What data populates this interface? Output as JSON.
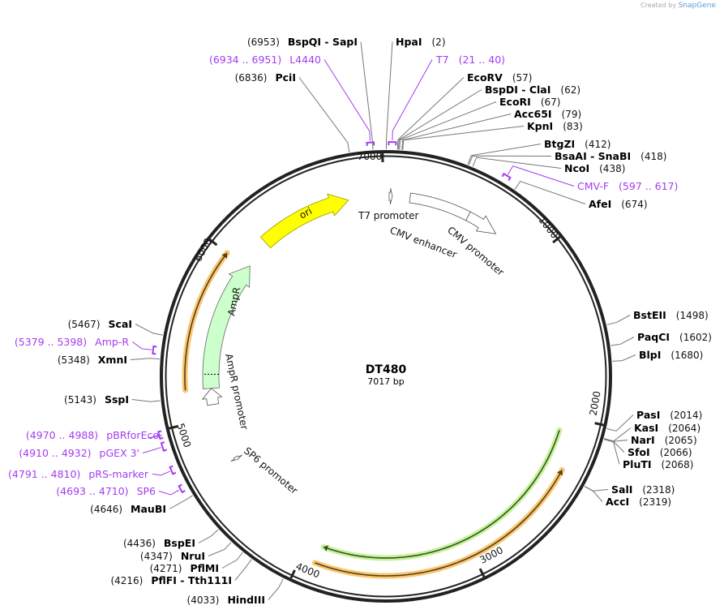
{
  "credit": {
    "prefix": "Created by",
    "brand": "SnapGene"
  },
  "plasmid": {
    "name": "DT480",
    "length_label": "7017 bp",
    "length_bp": 7017
  },
  "ticks": [
    "1000",
    "2000",
    "3000",
    "4000",
    "5000",
    "6000",
    "7000"
  ],
  "enzymes": [
    {
      "name": "HpaI",
      "pos": "(2)",
      "bp": 2
    },
    {
      "name": "EcoRV",
      "pos": "(57)",
      "bp": 57
    },
    {
      "name": "BspDI  -  ClaI",
      "pos": "(62)",
      "bp": 62
    },
    {
      "name": "EcoRI",
      "pos": "(67)",
      "bp": 67
    },
    {
      "name": "Acc65I",
      "pos": "(79)",
      "bp": 79
    },
    {
      "name": "KpnI",
      "pos": "(83)",
      "bp": 83
    },
    {
      "name": "BtgZI",
      "pos": "(412)",
      "bp": 412
    },
    {
      "name": "BsaAI  -  SnaBI",
      "pos": "(418)",
      "bp": 418
    },
    {
      "name": "NcoI",
      "pos": "(438)",
      "bp": 438
    },
    {
      "name": "AfeI",
      "pos": "(674)",
      "bp": 674
    },
    {
      "name": "BstEII",
      "pos": "(1498)",
      "bp": 1498
    },
    {
      "name": "PaqCI",
      "pos": "(1602)",
      "bp": 1602
    },
    {
      "name": "BlpI",
      "pos": "(1680)",
      "bp": 1680
    },
    {
      "name": "PasI",
      "pos": "(2014)",
      "bp": 2014
    },
    {
      "name": "KasI",
      "pos": "(2064)",
      "bp": 2064
    },
    {
      "name": "NarI",
      "pos": "(2065)",
      "bp": 2065
    },
    {
      "name": "SfoI",
      "pos": "(2066)",
      "bp": 2066
    },
    {
      "name": "PluTI",
      "pos": "(2068)",
      "bp": 2068
    },
    {
      "name": "SalI",
      "pos": "(2318)",
      "bp": 2318
    },
    {
      "name": "AccI",
      "pos": "(2319)",
      "bp": 2319
    },
    {
      "name": "HindIII",
      "pos": "(4033)",
      "bp": 4033
    },
    {
      "name": "PflFI  -  Tth111I",
      "pos": "(4216)",
      "bp": 4216
    },
    {
      "name": "PflMI",
      "pos": "(4271)",
      "bp": 4271
    },
    {
      "name": "NruI",
      "pos": "(4347)",
      "bp": 4347
    },
    {
      "name": "BspEI",
      "pos": "(4436)",
      "bp": 4436
    },
    {
      "name": "MauBI",
      "pos": "(4646)",
      "bp": 4646
    },
    {
      "name": "SspI",
      "pos": "(5143)",
      "bp": 5143
    },
    {
      "name": "XmnI",
      "pos": "(5348)",
      "bp": 5348
    },
    {
      "name": "ScaI",
      "pos": "(5467)",
      "bp": 5467
    },
    {
      "name": "PciI",
      "pos": "(6836)",
      "bp": 6836
    },
    {
      "name": "BspQI  -  SapI",
      "pos": "(6953)",
      "bp": 6953
    }
  ],
  "primers": [
    {
      "name": "T7",
      "range": "(21 .. 40)",
      "start": 21,
      "end": 40
    },
    {
      "name": "CMV-F",
      "range": "(597 .. 617)",
      "start": 597,
      "end": 617
    },
    {
      "name": "SP6",
      "range": "(4693 .. 4710)",
      "start": 4693,
      "end": 4710
    },
    {
      "name": "pRS-marker",
      "range": "(4791 .. 4810)",
      "start": 4791,
      "end": 4810
    },
    {
      "name": "pGEX 3'",
      "range": "(4910 .. 4932)",
      "start": 4910,
      "end": 4932
    },
    {
      "name": "pBRforEco",
      "range": "(4970 .. 4988)",
      "start": 4970,
      "end": 4988
    },
    {
      "name": "Amp-R",
      "range": "(5379 .. 5398)",
      "start": 5379,
      "end": 5398
    },
    {
      "name": "L4440",
      "range": "(6934 .. 6951)",
      "start": 6934,
      "end": 6951
    }
  ],
  "features": [
    {
      "name": "ori",
      "start": 6199,
      "end": 6783,
      "strand": 1,
      "color": "#ffff00"
    },
    {
      "name": "AmpR",
      "start": 5186,
      "end": 6024,
      "strand": 1,
      "color": "#ccffcc"
    },
    {
      "name": "AmpR promoter",
      "start": 5083,
      "end": 5186,
      "strand": 1,
      "color": "#ffffff"
    },
    {
      "name": "T7 promoter",
      "start": 20,
      "end": 40,
      "strand": 1,
      "color": "#ffffff"
    },
    {
      "name": "CMV enhancer",
      "start": 150,
      "end": 530,
      "strand": 0,
      "color": "#ffffff"
    },
    {
      "name": "CMV promoter",
      "start": 530,
      "end": 734,
      "strand": 1,
      "color": "#ffffff"
    },
    {
      "name": "SP6 promoter",
      "start": 4693,
      "end": 4712,
      "strand": -1,
      "color": "#ffffff"
    }
  ],
  "orfs": [
    {
      "start": 5186,
      "end": 6000,
      "strand": 1,
      "color": "#f7c873"
    },
    {
      "start": 2090,
      "end": 3900,
      "strand": 1,
      "color": "#c8f0a0"
    },
    {
      "start": 2300,
      "end": 3915,
      "strand": -1,
      "color": "#f7c873"
    }
  ]
}
